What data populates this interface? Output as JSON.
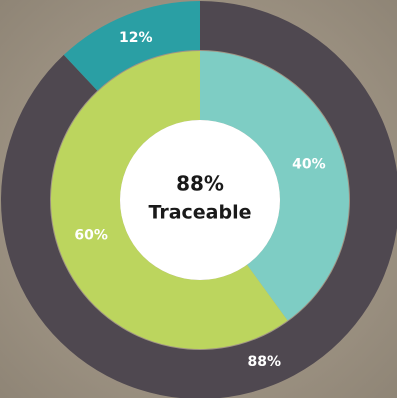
{
  "chart_data": {
    "type": "donut",
    "rings": [
      {
        "values": [
          88,
          12
        ],
        "value_labels": [
          "88%",
          "12%"
        ],
        "colors": [
          "#4f4850",
          "#2a9fa4"
        ]
      },
      {
        "values": [
          40,
          60
        ],
        "value_labels": [
          "40%",
          "60%"
        ],
        "colors": [
          "#7ecdc4",
          "#bcd55e"
        ]
      }
    ],
    "annotations": [
      "88%",
      "Traceable"
    ]
  }
}
